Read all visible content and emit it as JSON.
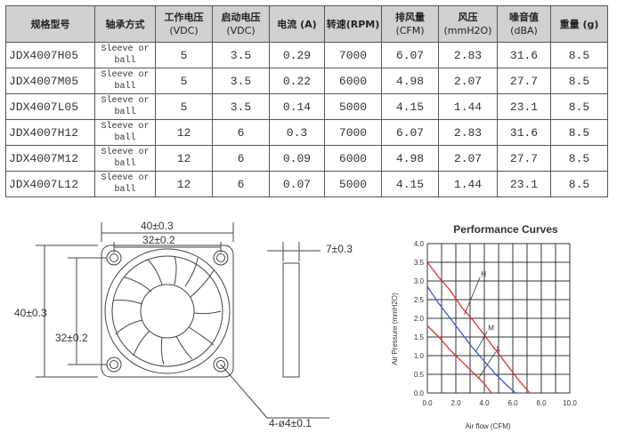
{
  "table": {
    "headers": [
      {
        "main": "规格型号",
        "sub": ""
      },
      {
        "main": "轴承方式",
        "sub": ""
      },
      {
        "main": "工作电压",
        "sub": "(VDC)"
      },
      {
        "main": "启动电压",
        "sub": "(VDC)"
      },
      {
        "main": "电流 (A)",
        "sub": ""
      },
      {
        "main": "转速(RPM)",
        "sub": ""
      },
      {
        "main": "排风量",
        "sub": "(CFM)"
      },
      {
        "main": "风压",
        "sub": "(mmH2O)"
      },
      {
        "main": "噪音值",
        "sub": "(dBA)"
      },
      {
        "main": "重量 (g)",
        "sub": ""
      }
    ],
    "rows": [
      {
        "model": "JDX4007H05",
        "bearing_l1": "Sleeve or",
        "bearing_l2": "ball",
        "voltage": "5",
        "start_voltage": "3.5",
        "current": "0.29",
        "speed": "7000",
        "airflow": "6.07",
        "pressure": "2.83",
        "noise": "31.6",
        "weight": "8.5"
      },
      {
        "model": "JDX4007M05",
        "bearing_l1": "Sleeve or",
        "bearing_l2": "ball",
        "voltage": "5",
        "start_voltage": "3.5",
        "current": "0.22",
        "speed": "6000",
        "airflow": "4.98",
        "pressure": "2.07",
        "noise": "27.7",
        "weight": "8.5"
      },
      {
        "model": "JDX4007L05",
        "bearing_l1": "Sleeve or",
        "bearing_l2": "ball",
        "voltage": "5",
        "start_voltage": "3.5",
        "current": "0.14",
        "speed": "5000",
        "airflow": "4.15",
        "pressure": "1.44",
        "noise": "23.1",
        "weight": "8.5"
      },
      {
        "model": "JDX4007H12",
        "bearing_l1": "Sleeve or",
        "bearing_l2": "ball",
        "voltage": "12",
        "start_voltage": "6",
        "current": "0.3",
        "speed": "7000",
        "airflow": "6.07",
        "pressure": "2.83",
        "noise": "31.6",
        "weight": "8.5"
      },
      {
        "model": "JDX4007M12",
        "bearing_l1": "Sleeve or",
        "bearing_l2": "ball",
        "voltage": "12",
        "start_voltage": "6",
        "current": "0.09",
        "speed": "6000",
        "airflow": "4.98",
        "pressure": "2.07",
        "noise": "27.7",
        "weight": "8.5"
      },
      {
        "model": "JDX4007L12",
        "bearing_l1": "Sleeve or",
        "bearing_l2": "ball",
        "voltage": "12",
        "start_voltage": "6",
        "current": "0.07",
        "speed": "5000",
        "airflow": "4.15",
        "pressure": "1.44",
        "noise": "23.1",
        "weight": "8.5"
      }
    ]
  },
  "drawing": {
    "dim_width": "40±0.3",
    "dim_hole_spacing_h": "32±0.2",
    "dim_height": "40±0.3",
    "dim_hole_spacing_v": "32±0.2",
    "dim_thickness": "7±0.3",
    "dim_holes": "4-ø4±0.1"
  },
  "chart_data": {
    "type": "line",
    "title": "Performance Curves",
    "xlabel": "Air flow (CFM)",
    "ylabel": "Air Pressure (mmH2O)",
    "xlim": [
      0,
      10
    ],
    "ylim": [
      0,
      4
    ],
    "x_ticks": [
      "0.0",
      "2.0",
      "4.0",
      "6.0",
      "8.0",
      "10.0"
    ],
    "y_ticks": [
      "0.0",
      "0.5",
      "1.0",
      "1.5",
      "2.0",
      "2.5",
      "3.0",
      "3.5",
      "4.0"
    ],
    "grid": true,
    "series": [
      {
        "name": "H",
        "color": "#e0302a",
        "points": [
          [
            0,
            3.5
          ],
          [
            0.8,
            3.1
          ],
          [
            1.6,
            2.75
          ],
          [
            2.4,
            2.3
          ],
          [
            3.2,
            1.95
          ],
          [
            4.0,
            1.55
          ],
          [
            4.8,
            1.15
          ],
          [
            5.6,
            0.75
          ],
          [
            6.4,
            0.35
          ],
          [
            7.2,
            0.0
          ]
        ]
      },
      {
        "name": "M",
        "color": "#3a5ad8",
        "points": [
          [
            0,
            2.85
          ],
          [
            0.8,
            2.4
          ],
          [
            1.6,
            2.0
          ],
          [
            2.4,
            1.6
          ],
          [
            3.2,
            1.2
          ],
          [
            4.0,
            0.85
          ],
          [
            4.8,
            0.5
          ],
          [
            5.6,
            0.2
          ],
          [
            6.2,
            0.0
          ]
        ]
      },
      {
        "name": "L",
        "color": "#e0302a",
        "points": [
          [
            0,
            1.8
          ],
          [
            0.8,
            1.5
          ],
          [
            1.6,
            1.15
          ],
          [
            2.4,
            0.85
          ],
          [
            3.2,
            0.55
          ],
          [
            4.0,
            0.25
          ],
          [
            4.5,
            0.0
          ]
        ]
      }
    ]
  }
}
